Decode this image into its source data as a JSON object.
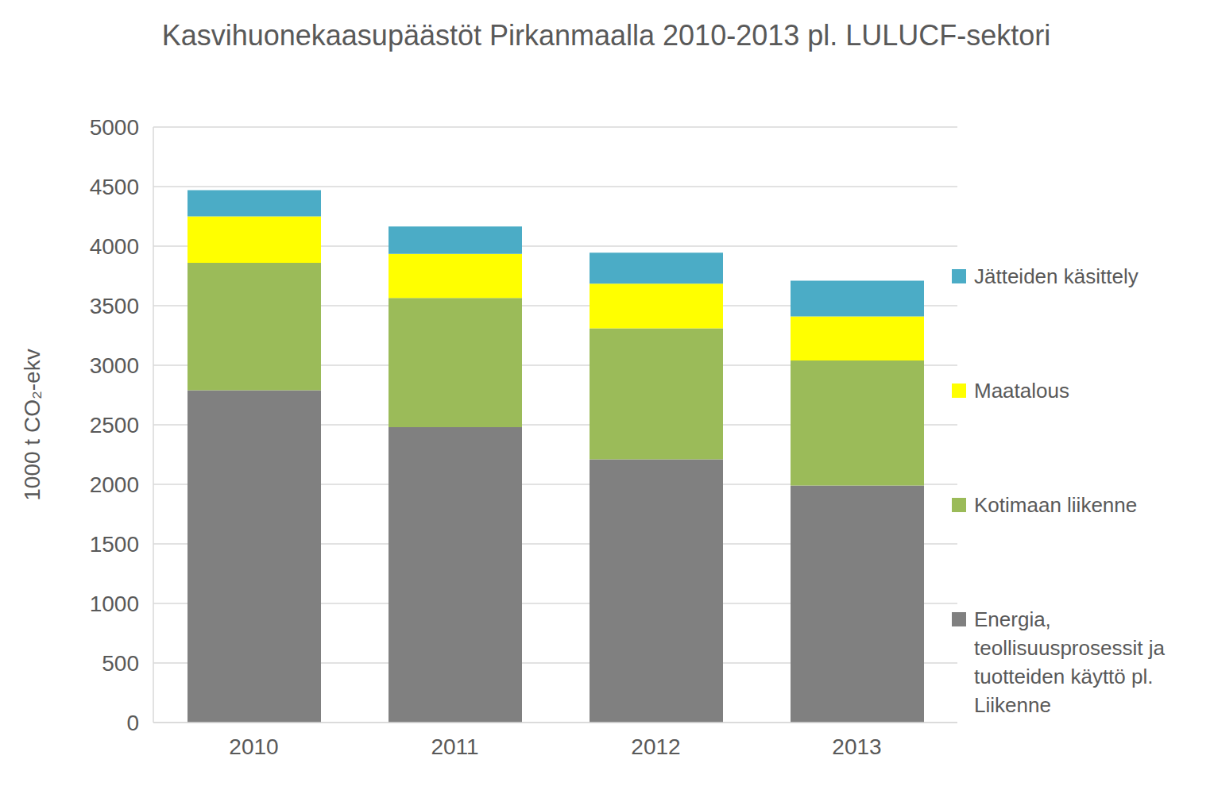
{
  "chart_data": {
    "type": "bar",
    "stacked": true,
    "title": "Kasvihuonekaasupäästöt Pirkanmaalla 2010-2013 pl. LULUCF-sektori",
    "ylabel": "1000 t CO₂-ekv",
    "categories": [
      "2010",
      "2011",
      "2012",
      "2013"
    ],
    "series": [
      {
        "name": "Energia, teollisuusprosessit ja tuotteiden käyttö pl. Liikenne",
        "color": "#808080",
        "values": [
          2790,
          2480,
          2210,
          1990
        ]
      },
      {
        "name": "Kotimaan liikenne",
        "color": "#9BBB59",
        "values": [
          1070,
          1085,
          1100,
          1050
        ]
      },
      {
        "name": "Maatalous",
        "color": "#FFFF00",
        "values": [
          390,
          370,
          375,
          370
        ]
      },
      {
        "name": "Jätteiden käsittely",
        "color": "#4BACC6",
        "values": [
          220,
          230,
          260,
          300
        ]
      }
    ],
    "ylim": [
      0,
      5000
    ],
    "yticks": [
      0,
      500,
      1000,
      1500,
      2000,
      2500,
      3000,
      3500,
      4000,
      4500,
      5000
    ],
    "grid": true,
    "legend": "right"
  }
}
